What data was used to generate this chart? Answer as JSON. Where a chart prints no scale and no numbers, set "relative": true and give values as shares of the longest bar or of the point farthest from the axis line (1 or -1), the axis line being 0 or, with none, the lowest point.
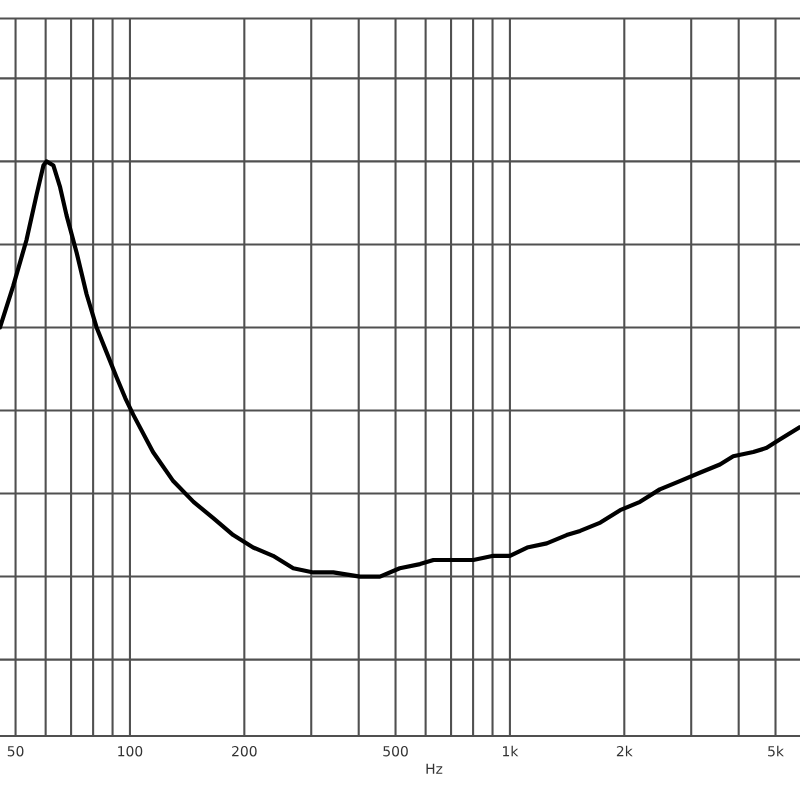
{
  "chart_data": {
    "type": "line",
    "xlabel": "Hz",
    "relative": true,
    "log": "x",
    "grid": true,
    "xlim": [
      45.5,
      5800
    ],
    "xticks": [
      50,
      {
        "value": 60,
        "label": null
      },
      {
        "value": 70,
        "label": null
      },
      {
        "value": 80,
        "label": null
      },
      {
        "value": 90,
        "label": null
      },
      100,
      200,
      {
        "value": 300,
        "label": null
      },
      {
        "value": 400,
        "label": null
      },
      500,
      {
        "value": 600,
        "label": null
      },
      {
        "value": 700,
        "label": null
      },
      {
        "value": 800,
        "label": null
      },
      {
        "value": 900,
        "label": null
      },
      {
        "value": 1000,
        "label": "1k"
      },
      {
        "value": 2000,
        "label": "2k"
      },
      {
        "value": 3000,
        "label": null
      },
      {
        "value": 4000,
        "label": null
      },
      {
        "value": 5000,
        "label": "5k"
      }
    ],
    "color": "#000000",
    "x": [
      45.5,
      49.3,
      53.4,
      56.8,
      59.2,
      60.3,
      62.9,
      65.4,
      68.1,
      72.4,
      76.9,
      81.7,
      86.8,
      92.2,
      97.2,
      102,
      115,
      130,
      147,
      166,
      187,
      211,
      238,
      269,
      304,
      343,
      403,
      455,
      513,
      580,
      629,
      710,
      801,
      905,
      1000,
      1110,
      1250,
      1410,
      1530,
      1730,
      1950,
      2200,
      2480,
      2800,
      3160,
      3570,
      3870,
      4370,
      4740,
      5130,
      5800
    ],
    "values": [
      0.6,
      0.7,
      0.81,
      0.92,
      0.99,
      1.0,
      0.99,
      0.94,
      0.87,
      0.78,
      0.68,
      0.6,
      0.54,
      0.48,
      0.43,
      0.39,
      0.3,
      0.23,
      0.18,
      0.14,
      0.1,
      0.07,
      0.05,
      0.02,
      0.01,
      0.01,
      0,
      0,
      0.02,
      0.03,
      0.04,
      0.04,
      0.04,
      0.05,
      0.05,
      0.07,
      0.08,
      0.1,
      0.11,
      0.13,
      0.16,
      0.18,
      0.21,
      0.23,
      0.25,
      0.27,
      0.29,
      0.3,
      0.31,
      0.33,
      0.36
    ]
  }
}
